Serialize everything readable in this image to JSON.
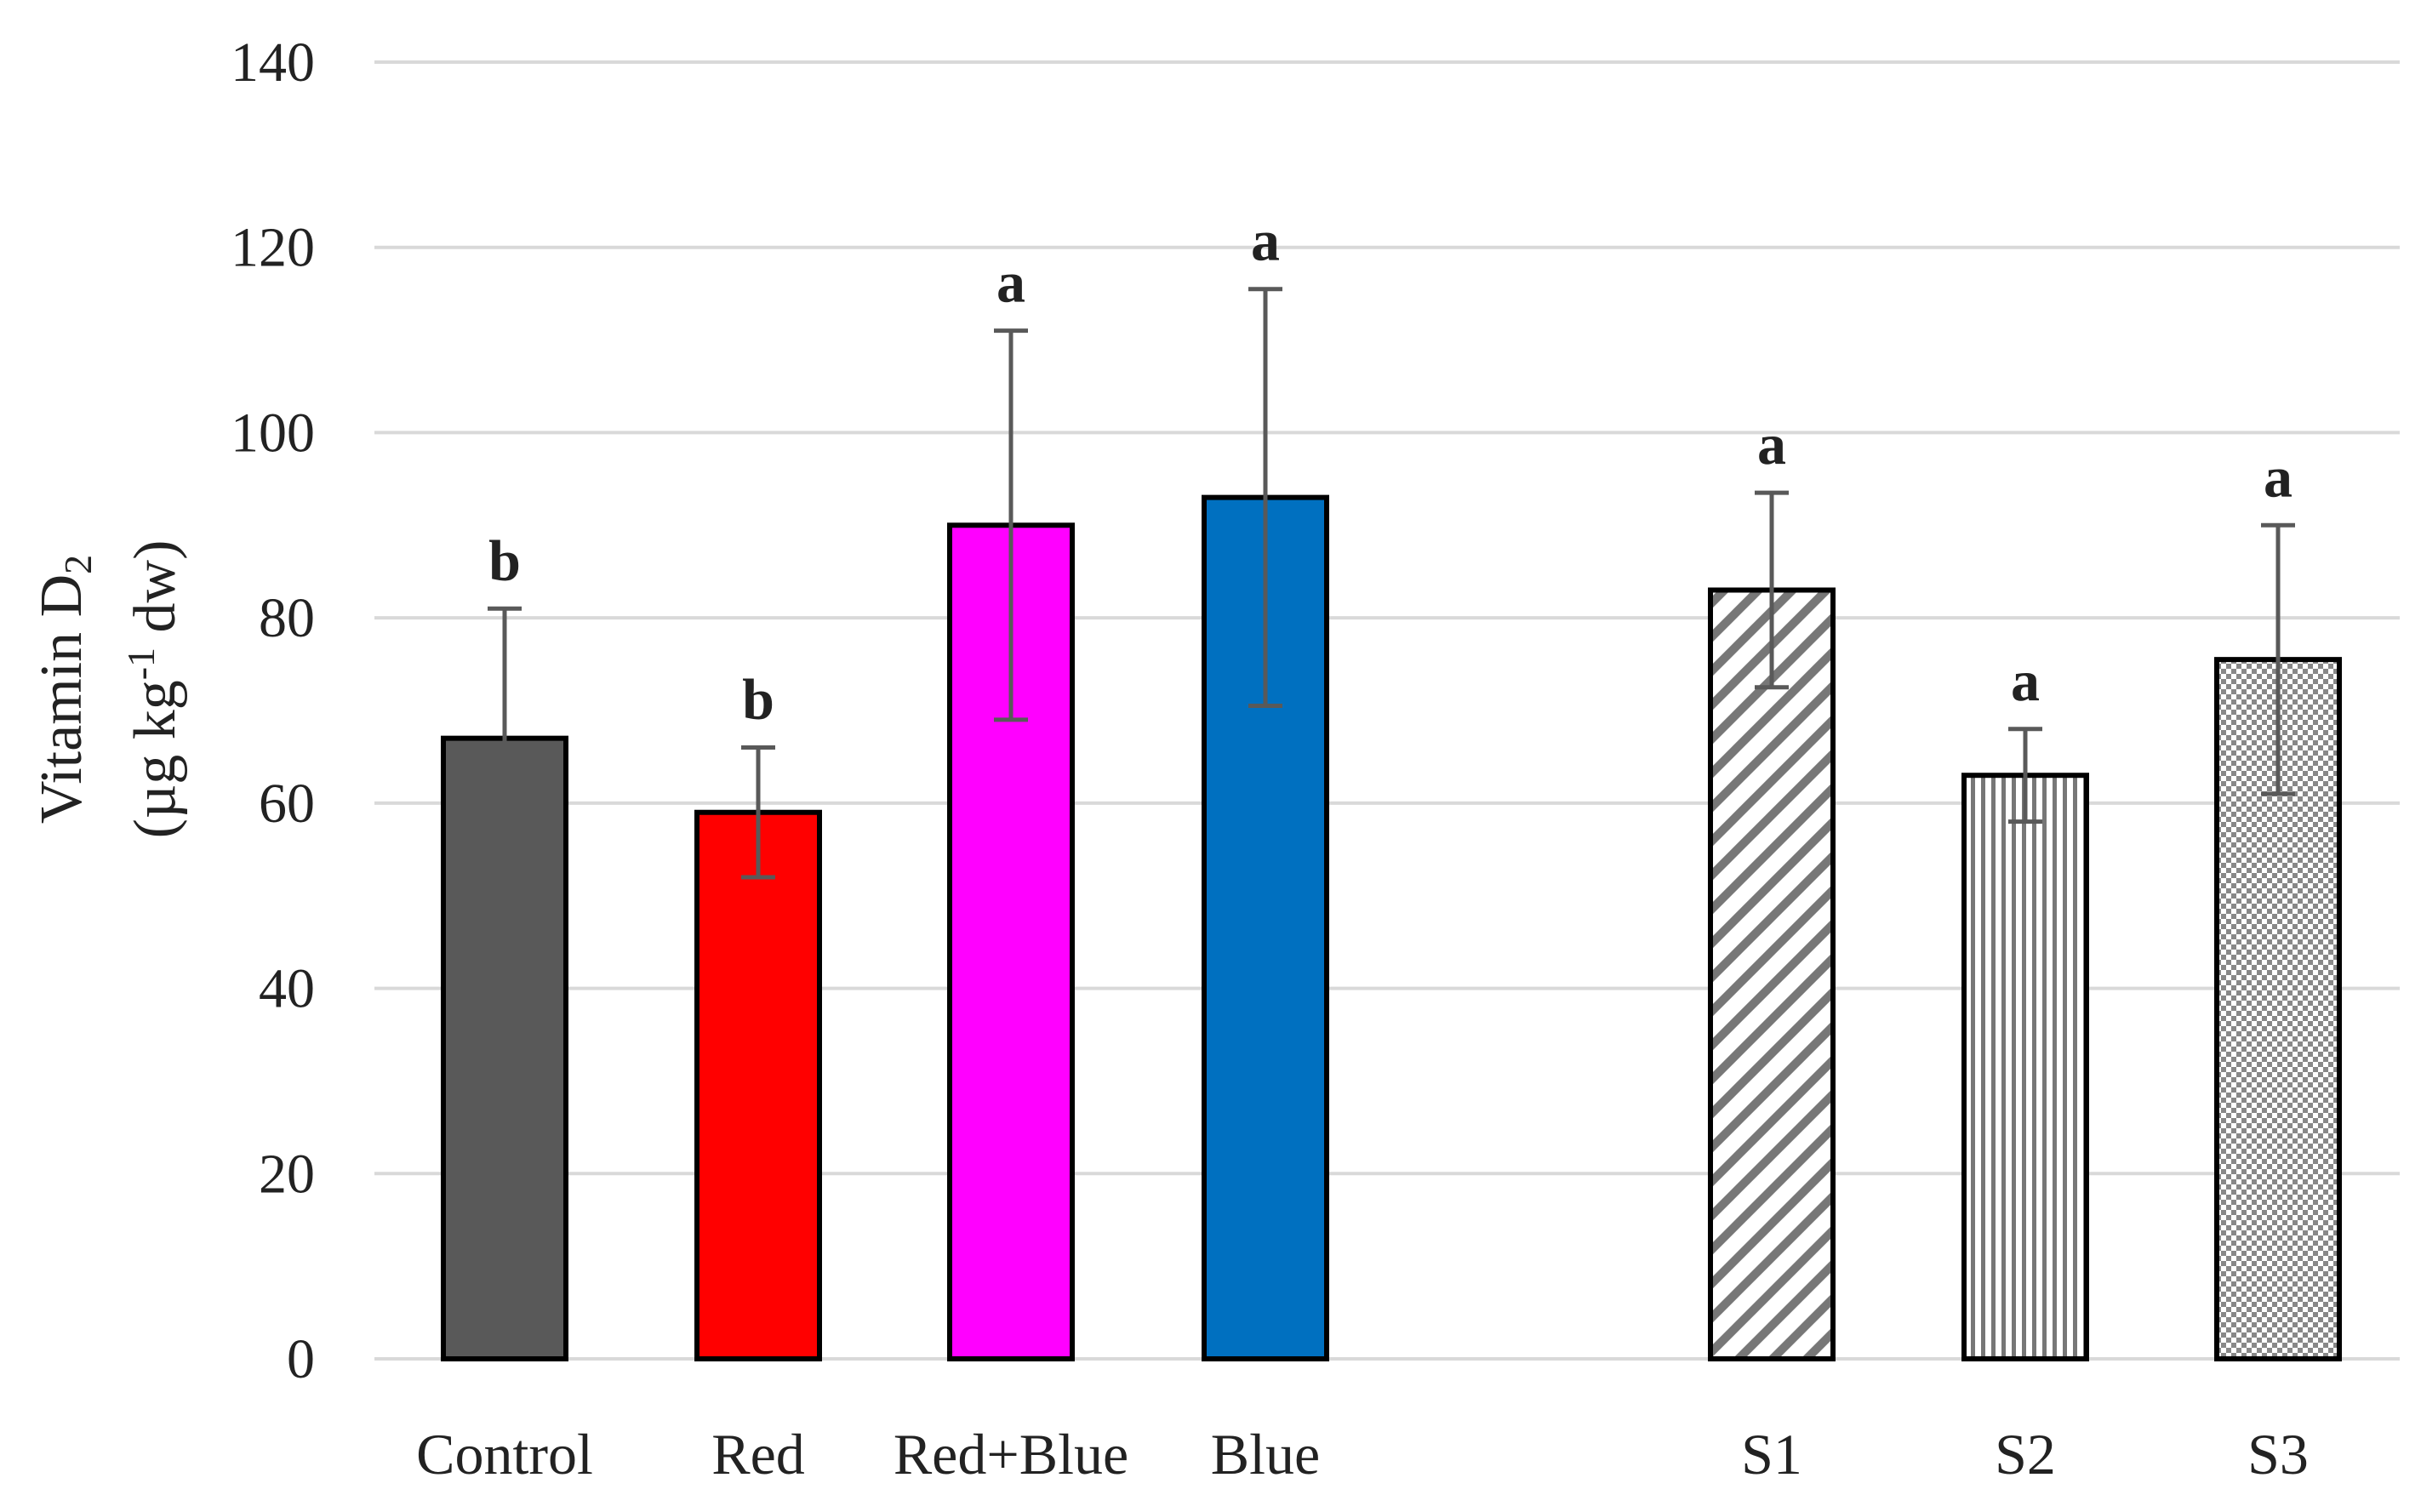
{
  "chart_data": {
    "type": "bar",
    "title": "",
    "xlabel": "",
    "ylabel_line1": "Vitamin D",
    "ylabel_line1_sub": "2",
    "ylabel_line2_a": "(µg kg",
    "ylabel_line2_sup": "-1",
    "ylabel_line2_b": " dw)",
    "ylim": [
      0,
      140
    ],
    "yticks": [
      "0",
      "20",
      "40",
      "60",
      "80",
      "100",
      "120",
      "140"
    ],
    "grid": true,
    "categories": [
      "Control",
      "Red",
      "Red+Blue",
      "Blue",
      "S1",
      "S2",
      "S3"
    ],
    "values": [
      67,
      59,
      90,
      93,
      83,
      63,
      75.5
    ],
    "errors": [
      14,
      7,
      21,
      22.5,
      10.5,
      5,
      14.5
    ],
    "significance": [
      "b",
      "b",
      "a",
      "a",
      "a",
      "a",
      "a"
    ],
    "fills": [
      "#595959",
      "#ff0000",
      "#ff00ff",
      "#0070c0",
      "pattern-diagonal",
      "pattern-vertical",
      "pattern-checker"
    ]
  }
}
